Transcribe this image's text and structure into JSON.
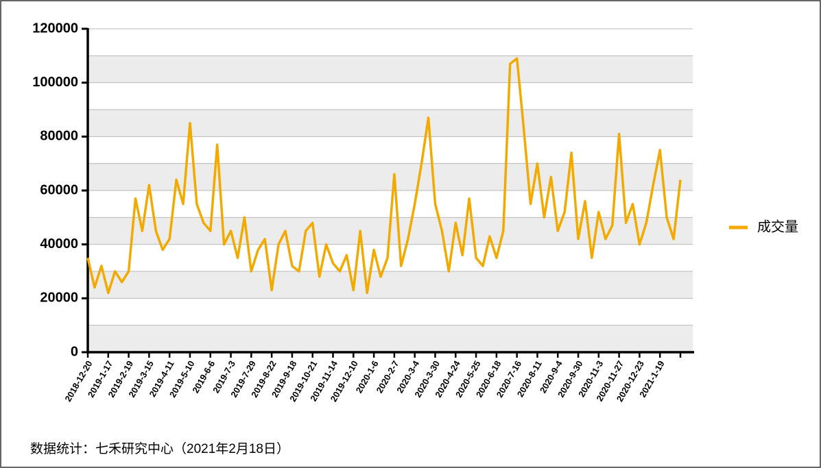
{
  "chart_data": {
    "type": "line",
    "categories": [
      "2018-12-20",
      null,
      null,
      "2019-1-17",
      null,
      null,
      "2019-2-19",
      null,
      null,
      "2019-3-15",
      null,
      null,
      "2019-4-11",
      null,
      null,
      "2019-5-10",
      null,
      null,
      "2019-6-6",
      null,
      null,
      "2019-7-3",
      null,
      null,
      "2019-7-29",
      null,
      null,
      "2019-8-22",
      null,
      null,
      "2019-9-18",
      null,
      null,
      "2019-10-21",
      null,
      null,
      "2019-11-14",
      null,
      null,
      "2019-12-10",
      null,
      null,
      "2020-1-6",
      null,
      null,
      "2020-2-7",
      null,
      null,
      "2020-3-4",
      null,
      null,
      "2020-3-30",
      null,
      null,
      "2020-4-24",
      null,
      null,
      "2020-5-25",
      null,
      null,
      "2020-6-18",
      null,
      null,
      "2020-7-16",
      null,
      null,
      "2020-8-11",
      null,
      null,
      "2020-9-4",
      null,
      null,
      "2020-9-30",
      null,
      null,
      "2020-11-3",
      null,
      null,
      "2020-11-27",
      null,
      null,
      "2020-12-23",
      null,
      null,
      "2021-1-19",
      null,
      null,
      null
    ],
    "series": [
      {
        "name": "成交量",
        "color": "#f2a900",
        "values": [
          35000,
          24000,
          32000,
          22000,
          30000,
          26000,
          30000,
          57000,
          45000,
          62000,
          45000,
          38000,
          42000,
          64000,
          55000,
          85000,
          55000,
          48000,
          45000,
          77000,
          40000,
          45000,
          35000,
          50000,
          30000,
          38000,
          42000,
          23000,
          40000,
          45000,
          32000,
          30000,
          45000,
          48000,
          28000,
          40000,
          33000,
          30000,
          36000,
          23000,
          45000,
          22000,
          38000,
          28000,
          35000,
          66000,
          32000,
          42000,
          55000,
          70000,
          87000,
          55000,
          45000,
          30000,
          48000,
          36000,
          57000,
          35000,
          32000,
          43000,
          35000,
          45000,
          107000,
          109000,
          83000,
          55000,
          70000,
          50000,
          65000,
          45000,
          52000,
          74000,
          42000,
          56000,
          35000,
          52000,
          42000,
          47000,
          81000,
          48000,
          55000,
          40000,
          48000,
          62000,
          75000,
          50000,
          42000,
          64000
        ]
      }
    ],
    "ylim": [
      0,
      120000
    ],
    "yticks": [
      0,
      20000,
      40000,
      60000,
      80000,
      100000,
      120000
    ],
    "minor_yticks": [
      10000,
      30000,
      50000,
      70000,
      90000,
      110000
    ],
    "grid": true,
    "legend": "right",
    "source": "数据统计：七禾研究中心（2021年2月18日）"
  }
}
